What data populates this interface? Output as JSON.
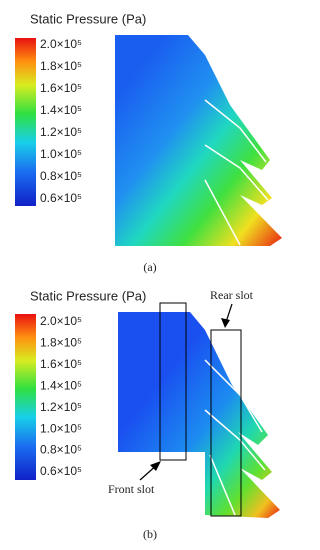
{
  "panels": [
    {
      "title": "Static Pressure (Pa)",
      "colorbar_ticks": [
        "2.0×10⁵",
        "1.8×10⁵",
        "1.6×10⁵",
        "1.4×10⁵",
        "1.2×10⁵",
        "1.0×10⁵",
        "0.8×10⁵",
        "0.6×10⁵"
      ],
      "caption": "(a)"
    },
    {
      "title": "Static Pressure (Pa)",
      "colorbar_ticks": [
        "2.0×10⁵",
        "1.8×10⁵",
        "1.6×10⁵",
        "1.4×10⁵",
        "1.2×10⁵",
        "1.0×10⁵",
        "0.8×10⁵",
        "0.6×10⁵"
      ],
      "annotations": [
        "Front slot",
        "Rear slot"
      ],
      "caption": "(b)"
    }
  ]
}
